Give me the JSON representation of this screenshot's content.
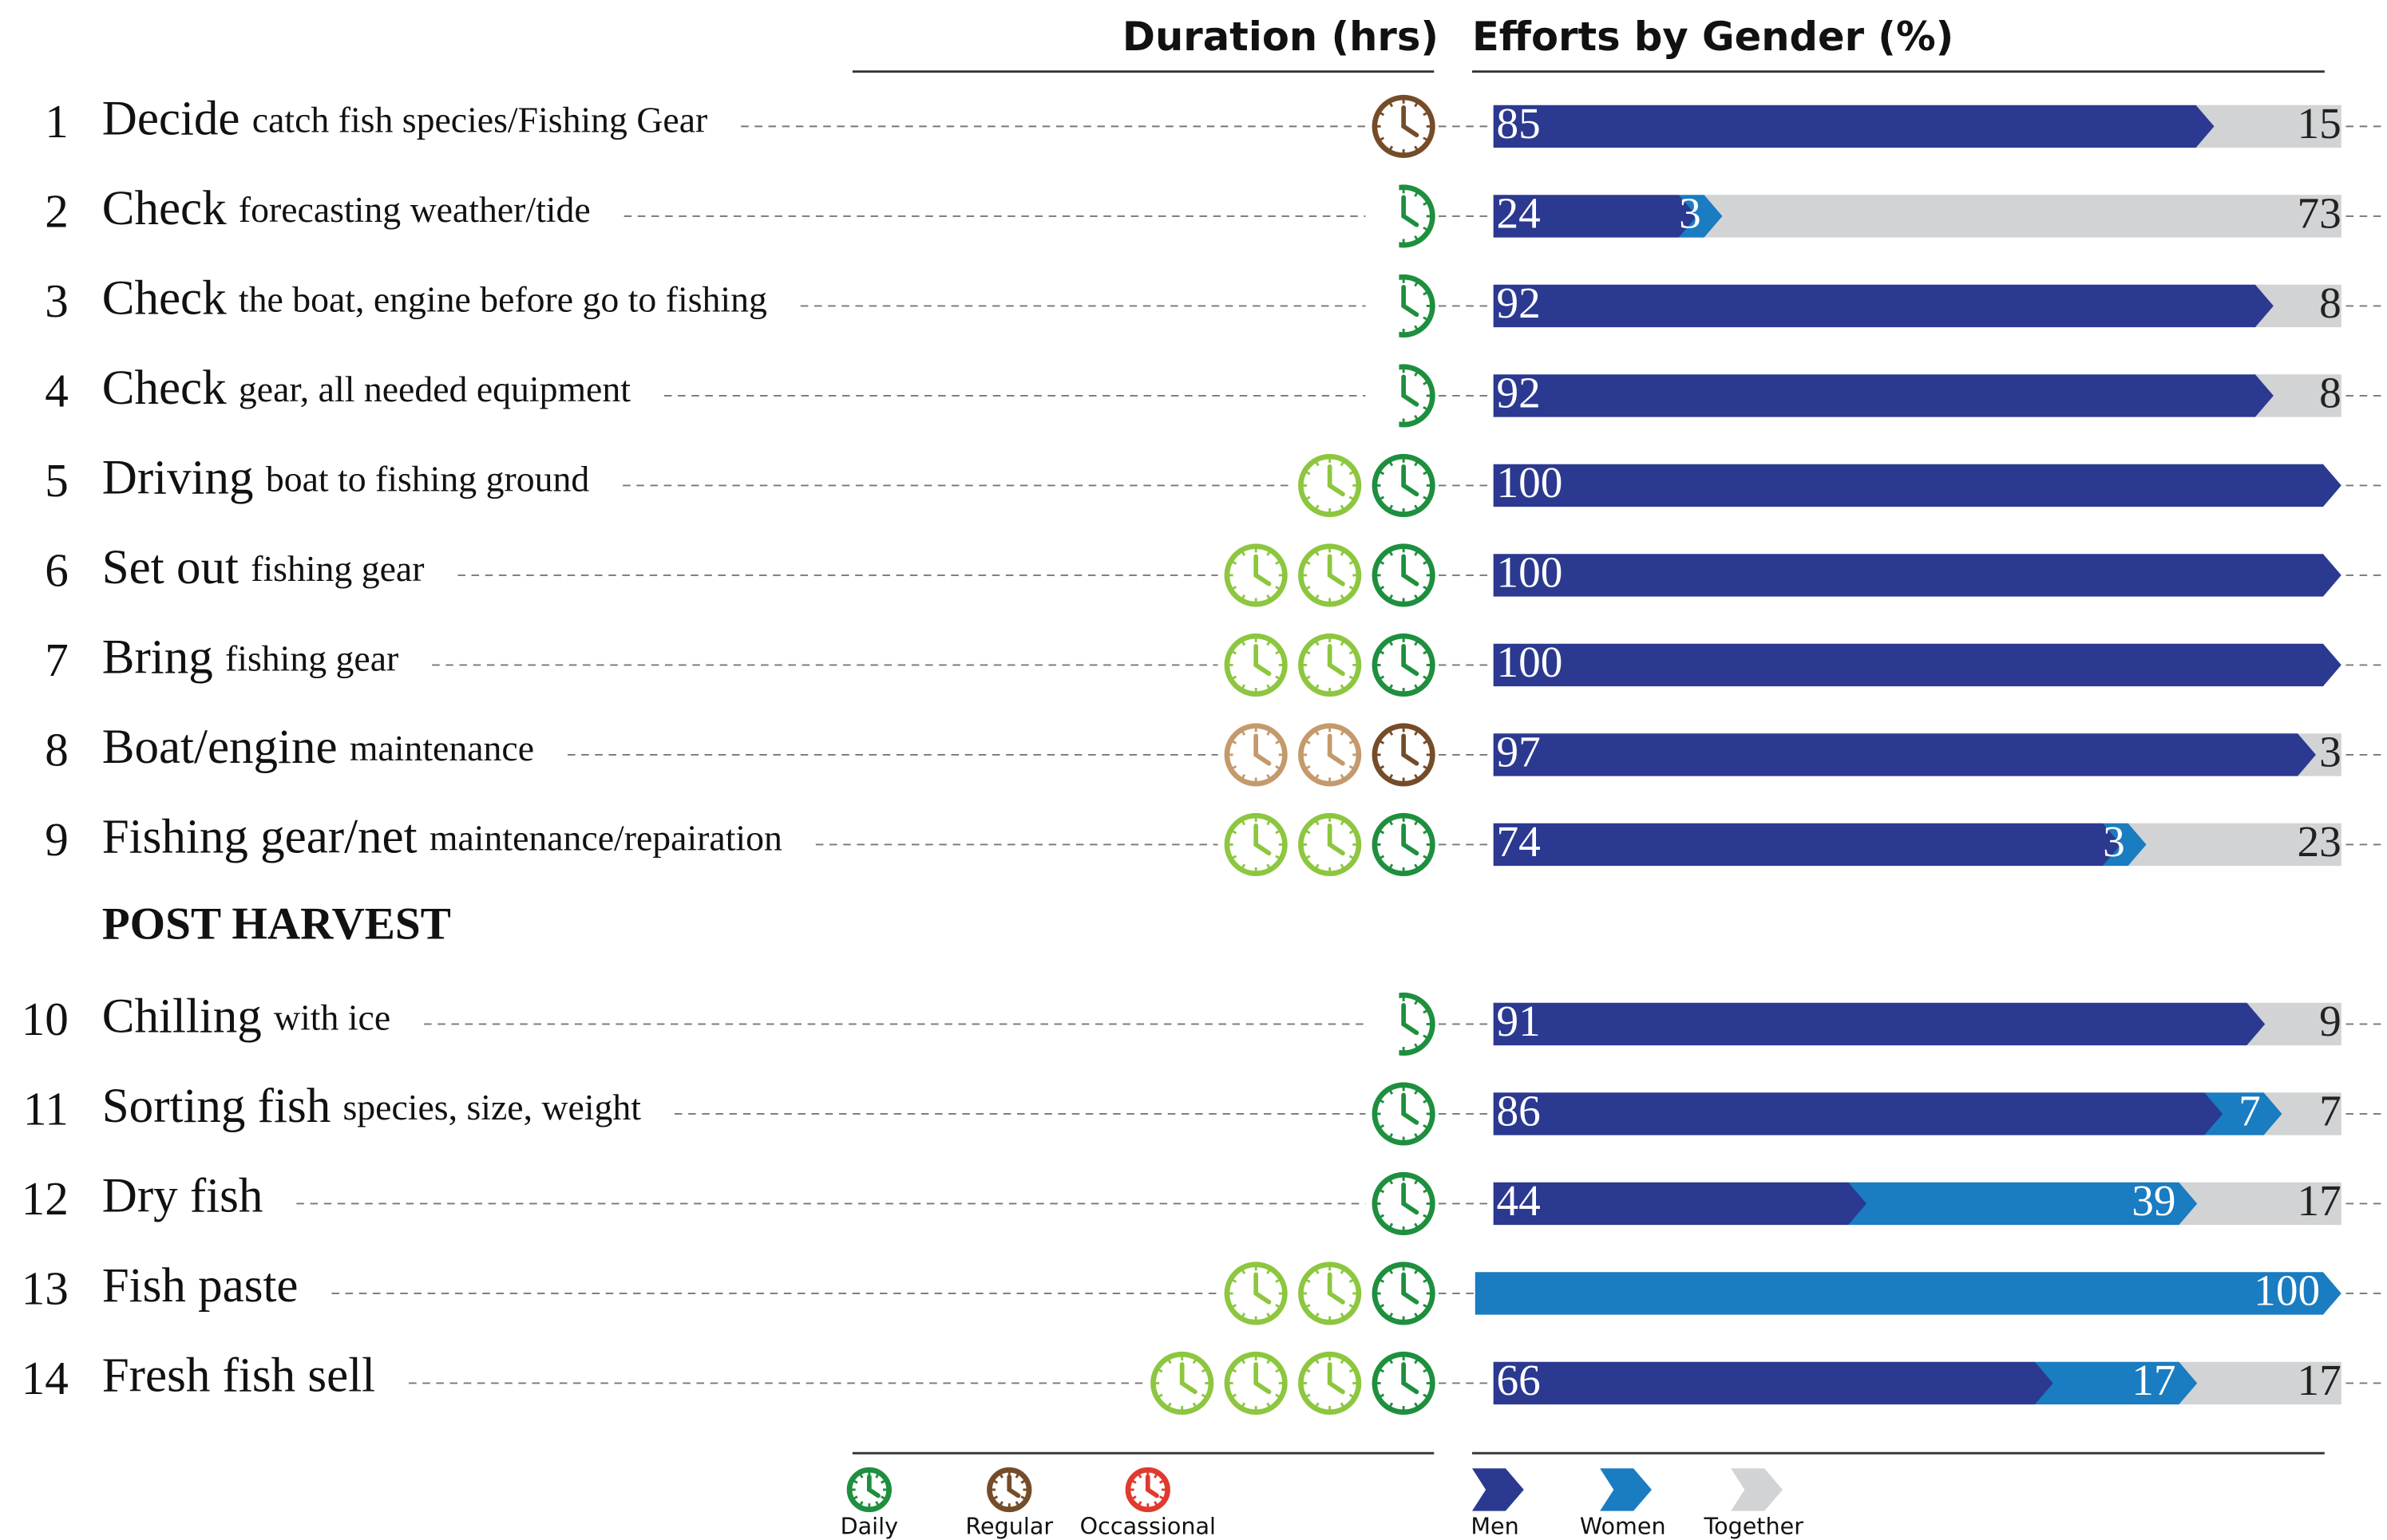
{
  "chart_data": {
    "type": "gender-effort",
    "duration_title": "Duration (hrs)",
    "title": "Efforts by Gender (%)",
    "xlim": [
      0,
      100
    ],
    "frequency_legend": [
      {
        "name": "Daily",
        "color": "#1e8f3e",
        "light_color": "#8dc63f"
      },
      {
        "name": "Regular",
        "color": "#754c29",
        "light_color": "#c49a6c"
      },
      {
        "name": "Occassional",
        "color": "#e03a2f",
        "light_color": "#f08a80"
      }
    ],
    "series": [
      {
        "name": "Men",
        "color": "#2b3990"
      },
      {
        "name": "Women",
        "color": "#1a7cc1"
      },
      {
        "name": "Together",
        "color": "#d1d3d4"
      }
    ],
    "rows": [
      {
        "id": 1,
        "label": "Decide",
        "detail": "catch fish species/Fishing Gear",
        "duration": 1,
        "frequency": 1,
        "values": [
          85,
          null,
          15
        ]
      },
      {
        "id": 2,
        "label": "Check",
        "detail": "forecasting weather/tide",
        "duration": 0.5,
        "frequency": 0,
        "values": [
          24,
          3,
          73
        ]
      },
      {
        "id": 3,
        "label": "Check",
        "detail": "the boat, engine before go to fishing",
        "duration": 0.5,
        "frequency": 0,
        "values": [
          92,
          null,
          8
        ]
      },
      {
        "id": 4,
        "label": "Check",
        "detail": "gear, all needed equipment",
        "duration": 0.5,
        "frequency": 0,
        "values": [
          92,
          null,
          8
        ]
      },
      {
        "id": 5,
        "label": "Driving",
        "detail": "boat to fishing ground",
        "duration": 2,
        "frequency": 0,
        "values": [
          100,
          null,
          null
        ]
      },
      {
        "id": 6,
        "label": "Set out",
        "detail": "fishing gear",
        "duration": 3,
        "frequency": 0,
        "values": [
          100,
          null,
          null
        ]
      },
      {
        "id": 7,
        "label": "Bring",
        "detail": "fishing gear",
        "duration": 3,
        "frequency": 0,
        "values": [
          100,
          null,
          null
        ]
      },
      {
        "id": 8,
        "label": "Boat/engine",
        "detail": "maintenance",
        "duration": 3,
        "frequency": 1,
        "values": [
          97,
          null,
          3
        ]
      },
      {
        "id": 9,
        "label": "Fishing gear/net",
        "detail": "maintenance/repairation",
        "duration": 3,
        "frequency": 0,
        "values": [
          74,
          3,
          23
        ]
      },
      {
        "section": "POST HARVEST"
      },
      {
        "id": 10,
        "label": "Chilling",
        "detail": "with ice",
        "duration": 0.5,
        "frequency": 0,
        "values": [
          91,
          null,
          9
        ]
      },
      {
        "id": 11,
        "label": "Sorting fish",
        "detail": "species, size, weight",
        "duration": 1,
        "frequency": 0,
        "values": [
          86,
          7,
          7
        ]
      },
      {
        "id": 12,
        "label": "Dry fish",
        "detail": "",
        "duration": 1,
        "frequency": 0,
        "values": [
          44,
          39,
          17
        ]
      },
      {
        "id": 13,
        "label": "Fish paste",
        "detail": "",
        "duration": 3,
        "frequency": 0,
        "values": [
          null,
          100,
          null
        ]
      },
      {
        "id": 14,
        "label": "Fresh fish sell",
        "detail": "",
        "duration": 4,
        "frequency": 0,
        "values": [
          66,
          17,
          17
        ]
      }
    ]
  }
}
